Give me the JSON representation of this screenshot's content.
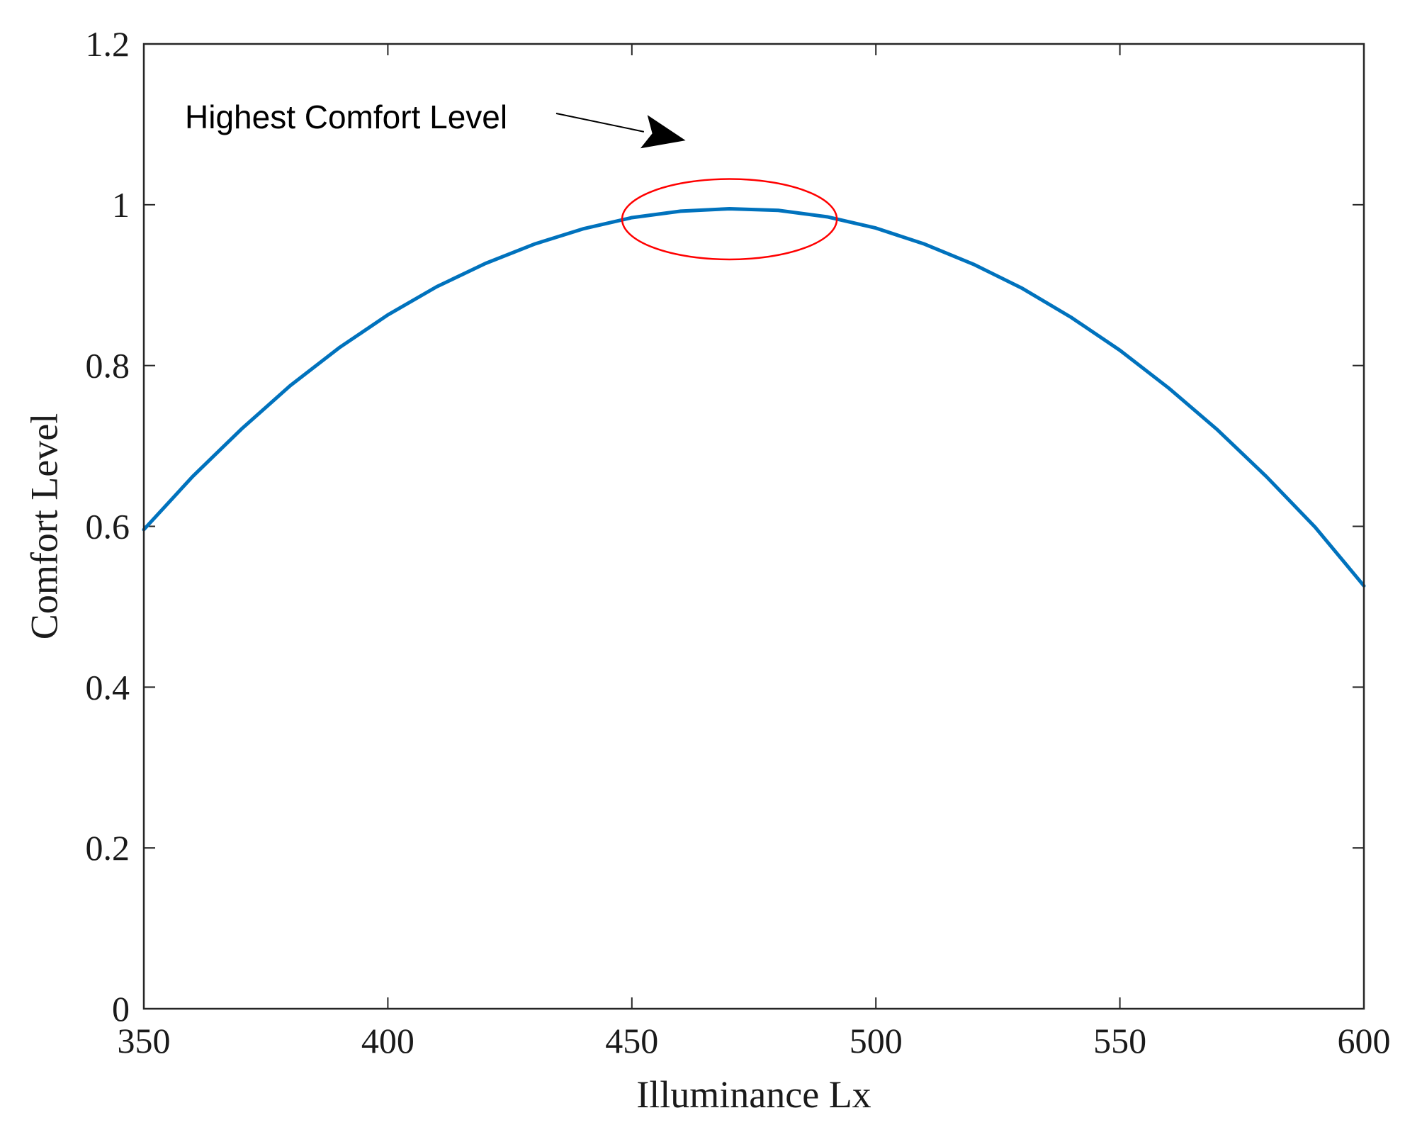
{
  "chart_data": {
    "type": "line",
    "title": "",
    "xlabel": "Illuminance Lx",
    "ylabel": "Comfort Level",
    "xlim": [
      350,
      600
    ],
    "ylim": [
      0,
      1.2
    ],
    "x_ticks": [
      350,
      400,
      450,
      500,
      550,
      600
    ],
    "y_ticks": [
      0,
      0.2,
      0.4,
      0.6,
      0.8,
      1,
      1.2
    ],
    "x_tick_labels": [
      "350",
      "400",
      "450",
      "500",
      "550",
      "600"
    ],
    "y_tick_labels": [
      "0",
      "0.2",
      "0.4",
      "0.6",
      "0.8",
      "1",
      "1.2"
    ],
    "grid": false,
    "series": [
      {
        "color": "#0072bd",
        "x": [
          350,
          360,
          370,
          380,
          390,
          400,
          410,
          420,
          430,
          440,
          450,
          460,
          470,
          480,
          490,
          500,
          510,
          520,
          530,
          540,
          550,
          560,
          570,
          580,
          590,
          600
        ],
        "y": [
          0.596,
          0.662,
          0.721,
          0.775,
          0.822,
          0.863,
          0.898,
          0.927,
          0.951,
          0.97,
          0.984,
          0.992,
          0.995,
          0.993,
          0.985,
          0.971,
          0.951,
          0.926,
          0.896,
          0.86,
          0.819,
          0.772,
          0.72,
          0.662,
          0.599,
          0.526
        ]
      }
    ],
    "annotations": [
      {
        "text": "Highest Comfort Level",
        "points_to": {
          "x": 461,
          "y": 1.08
        }
      }
    ],
    "highlight_ellipse": {
      "center": {
        "x": 470,
        "y": 0.982
      },
      "radius_x": 22,
      "radius_y": 0.05,
      "color": "#ff0000"
    }
  }
}
